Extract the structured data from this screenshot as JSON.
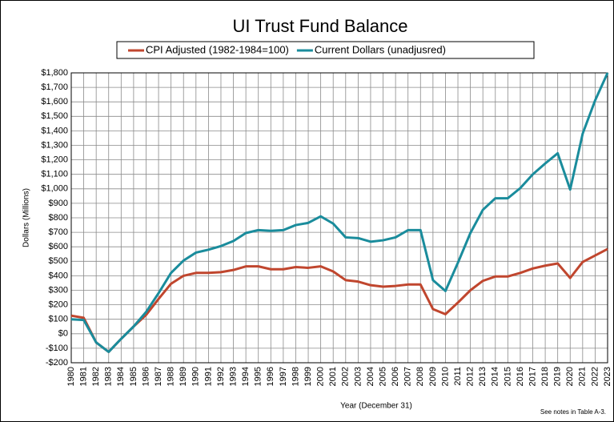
{
  "chart_data": {
    "type": "line",
    "title": "UI Trust Fund Balance",
    "x_label": "Year (December 31)",
    "y_label": "Dollars (Millions)",
    "note": "See notes  in Table A-3.",
    "categories": [
      "1980",
      "1981",
      "1982",
      "1983",
      "1984",
      "1985",
      "1986",
      "1987",
      "1988",
      "1989",
      "1990",
      "1991",
      "1992",
      "1993",
      "1994",
      "1995",
      "1996",
      "1997",
      "1998",
      "1999",
      "2000",
      "2001",
      "2002",
      "2003",
      "2004",
      "2005",
      "2006",
      "2007",
      "2008",
      "2009",
      "2010",
      "2011",
      "2012",
      "2013",
      "2014",
      "2015",
      "2016",
      "2017",
      "2018",
      "2019",
      "2020",
      "2021",
      "2022",
      "2023"
    ],
    "series": [
      {
        "name": "CPI Adjusted (1982-1984=100)",
        "color": "#c0462e",
        "values": [
          125,
          110,
          -60,
          -125,
          -35,
          50,
          130,
          240,
          345,
          400,
          420,
          420,
          425,
          440,
          465,
          465,
          445,
          445,
          460,
          455,
          465,
          430,
          370,
          360,
          335,
          325,
          330,
          340,
          340,
          170,
          135,
          215,
          300,
          365,
          395,
          395,
          420,
          450,
          470,
          485,
          385,
          495,
          540,
          585
        ]
      },
      {
        "name": "Current Dollars (unadjusred)",
        "color": "#1a8c9c",
        "values": [
          100,
          95,
          -60,
          -125,
          -35,
          50,
          150,
          280,
          420,
          505,
          560,
          580,
          605,
          640,
          695,
          715,
          710,
          715,
          750,
          765,
          810,
          760,
          665,
          660,
          635,
          645,
          665,
          715,
          715,
          370,
          295,
          490,
          695,
          855,
          935,
          935,
          1005,
          1100,
          1175,
          1245,
          995,
          1380,
          1610,
          1800
        ]
      }
    ],
    "ylim": [
      -200,
      1800
    ],
    "yticks": [
      {
        "value": -200,
        "label": "-$200"
      },
      {
        "value": -100,
        "label": "-$100"
      },
      {
        "value": 0,
        "label": "$0"
      },
      {
        "value": 100,
        "label": "$100"
      },
      {
        "value": 200,
        "label": "$200"
      },
      {
        "value": 300,
        "label": "$300"
      },
      {
        "value": 400,
        "label": "$400"
      },
      {
        "value": 500,
        "label": "$500"
      },
      {
        "value": 600,
        "label": "$600"
      },
      {
        "value": 700,
        "label": "$700"
      },
      {
        "value": 800,
        "label": "$800"
      },
      {
        "value": 900,
        "label": "$900"
      },
      {
        "value": 1000,
        "label": "$1,000"
      },
      {
        "value": 1100,
        "label": "$1,100"
      },
      {
        "value": 1200,
        "label": "$1,200"
      },
      {
        "value": 1300,
        "label": "$1,300"
      },
      {
        "value": 1400,
        "label": "$1,400"
      },
      {
        "value": 1500,
        "label": "$1,500"
      },
      {
        "value": 1600,
        "label": "$1,600"
      },
      {
        "value": 1700,
        "label": "$1,700"
      },
      {
        "value": 1800,
        "label": "$1,800"
      }
    ],
    "grid": true,
    "legend": "top"
  }
}
